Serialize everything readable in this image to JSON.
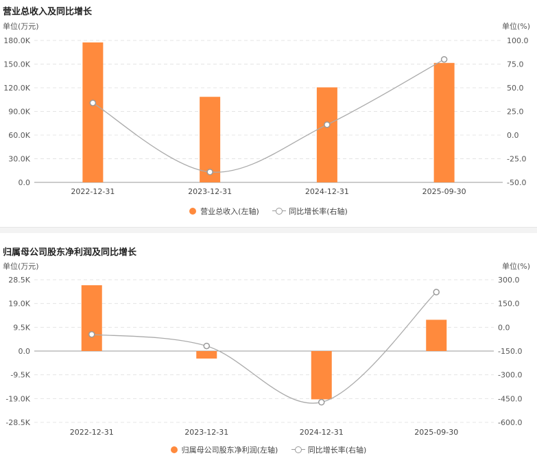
{
  "chart_data": [
    {
      "type": "bar",
      "title": "营业总收入及同比增长",
      "unit_left": "单位(万元)",
      "unit_right": "单位(%)",
      "categories": [
        "2022-12-31",
        "2023-12-31",
        "2024-12-31",
        "2025-09-30"
      ],
      "series": [
        {
          "name": "营业总收入(左轴)",
          "type": "bar",
          "axis": "left",
          "values": [
            177500,
            108500,
            120500,
            151500
          ]
        },
        {
          "name": "同比增长率(右轴)",
          "type": "line",
          "axis": "right",
          "values": [
            34,
            -39,
            11,
            80
          ]
        }
      ],
      "ylim_left": [
        0,
        180000
      ],
      "yticks_left": [
        "0.0",
        "30.0K",
        "60.0K",
        "90.0K",
        "120.0K",
        "150.0K",
        "180.0K"
      ],
      "ylim_right": [
        -50,
        100
      ],
      "yticks_right": [
        "-50.0",
        "-25.0",
        "0.0",
        "25.0",
        "50.0",
        "75.0",
        "100.0"
      ],
      "grid": true,
      "legend": "bottom-center",
      "colors": {
        "bar": "#ff8a3d",
        "line": "#aaaaaa"
      }
    },
    {
      "type": "bar",
      "title": "归属母公司股东净利润及同比增长",
      "unit_left": "单位(万元)",
      "unit_right": "单位(%)",
      "categories": [
        "2022-12-31",
        "2023-12-31",
        "2024-12-31",
        "2025-09-30"
      ],
      "series": [
        {
          "name": "归属母公司股东净利润(左轴)",
          "type": "bar",
          "axis": "left",
          "values": [
            26300,
            -3000,
            -19300,
            12500
          ]
        },
        {
          "name": "同比增长率(右轴)",
          "type": "line",
          "axis": "right",
          "values": [
            -45,
            -118,
            -473,
            222
          ]
        }
      ],
      "ylim_left": [
        -28500,
        28500
      ],
      "yticks_left": [
        "-28.5K",
        "-19.0K",
        "-9.5K",
        "0.0",
        "9.5K",
        "19.0K",
        "28.5K"
      ],
      "ylim_right": [
        -600,
        300
      ],
      "yticks_right": [
        "-600.0",
        "-450.0",
        "-300.0",
        "-150.0",
        "0.0",
        "150.0",
        "300.0"
      ],
      "grid": true,
      "legend": "bottom-center",
      "colors": {
        "bar": "#ff8a3d",
        "line": "#aaaaaa"
      }
    }
  ]
}
